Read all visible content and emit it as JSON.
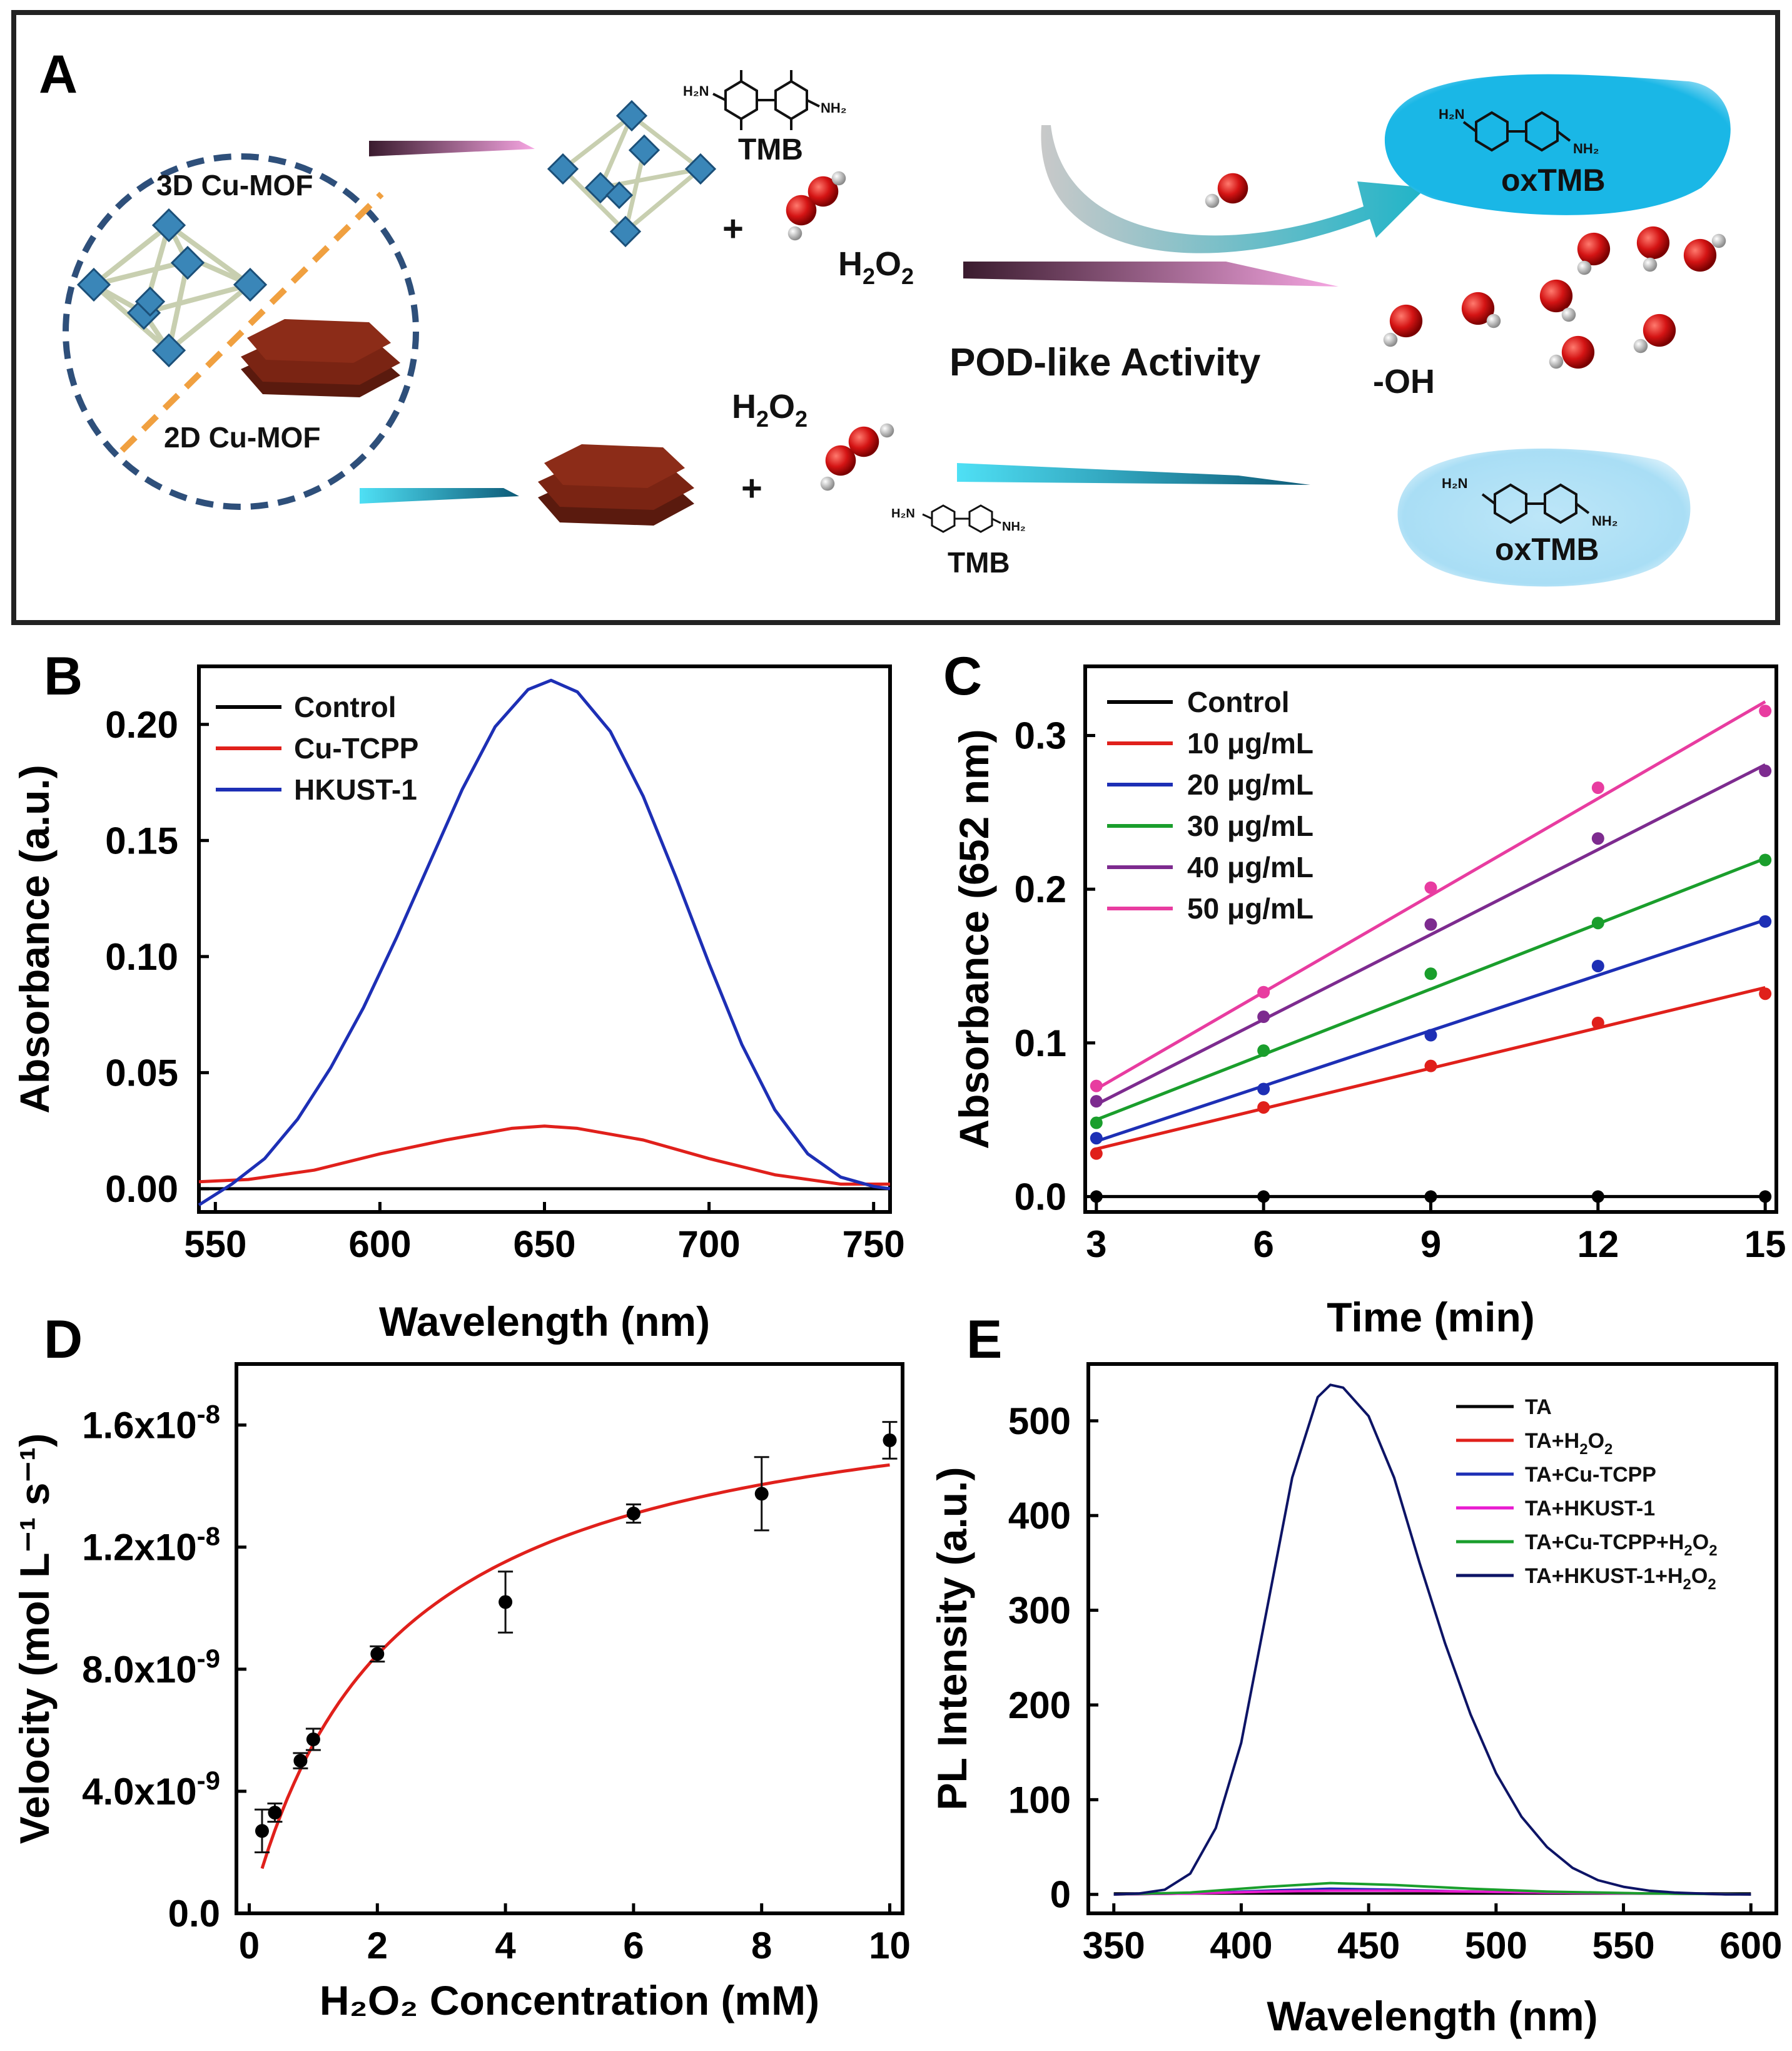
{
  "panel_a": {
    "letter": "A",
    "mof3d_label": "3D Cu-MOF",
    "mof2d_label": "2D Cu-MOF",
    "tmb_label": "TMB",
    "h2o2_label_top_main": "H",
    "h2o2_label_top_sub1": "2",
    "h2o2_label_top_mid": "O",
    "h2o2_label_top_sub2": "2",
    "pod_label": "POD-like Activity",
    "oh_label": "-OH",
    "oxtmb_label": "oxTMB",
    "plus": "+",
    "h2n_label": "H₂N",
    "nh2_label": "NH₂",
    "colors": {
      "cyan": "#1ab7e6",
      "light_cyan": "#a9def5",
      "mof_blue": "#3a86b8",
      "brown": "#7a2413",
      "red_atom": "#d41414",
      "pink_arrow": "#ef8fd0",
      "teal_arrow": "#1aa9c9"
    }
  },
  "chart_data": [
    {
      "panel": "B",
      "type": "line",
      "xlabel": "Wavelength (nm)",
      "ylabel": "Absorbance (a.u.)",
      "xlim": [
        545,
        755
      ],
      "ylim": [
        -0.01,
        0.225
      ],
      "xticks": [
        "550",
        "600",
        "650",
        "700",
        "750"
      ],
      "yticks": [
        "0.00",
        "0.05",
        "0.10",
        "0.15",
        "0.20"
      ],
      "legend": "top-left",
      "series": [
        {
          "name": "Control",
          "color": "#000000",
          "x": [
            545,
            755
          ],
          "y": [
            0.0,
            0.0
          ]
        },
        {
          "name": "Cu-TCPP",
          "color": "#e0201b",
          "x": [
            545,
            560,
            580,
            600,
            620,
            640,
            650,
            660,
            680,
            700,
            720,
            740,
            755
          ],
          "y": [
            0.003,
            0.004,
            0.008,
            0.015,
            0.021,
            0.026,
            0.027,
            0.026,
            0.021,
            0.013,
            0.006,
            0.002,
            0.002
          ]
        },
        {
          "name": "HKUST-1",
          "color": "#1d2fb5",
          "x": [
            545,
            555,
            565,
            575,
            585,
            595,
            605,
            615,
            625,
            635,
            645,
            652,
            660,
            670,
            680,
            690,
            700,
            710,
            720,
            730,
            740,
            750,
            755
          ],
          "y": [
            -0.007,
            0.002,
            0.013,
            0.03,
            0.052,
            0.078,
            0.108,
            0.14,
            0.172,
            0.199,
            0.215,
            0.219,
            0.214,
            0.197,
            0.169,
            0.134,
            0.097,
            0.062,
            0.034,
            0.015,
            0.005,
            0.001,
            0.0
          ]
        }
      ]
    },
    {
      "panel": "C",
      "type": "scatter",
      "xlabel": "Time (min)",
      "ylabel": "Absorbance (652 nm)",
      "xlim": [
        2.8,
        15.2
      ],
      "ylim": [
        -0.01,
        0.345
      ],
      "xticks": [
        "3",
        "6",
        "9",
        "12",
        "15"
      ],
      "yticks": [
        "0.0",
        "0.1",
        "0.2",
        "0.3"
      ],
      "legend": "top-left",
      "x": [
        3,
        6,
        9,
        12,
        15
      ],
      "series": [
        {
          "name": "Control",
          "color": "#000000",
          "values": [
            0.0,
            0.0,
            0.0,
            0.0,
            0.0
          ],
          "fit": [
            0.0,
            0.0
          ]
        },
        {
          "name": "10 μg/mL",
          "color": "#e0201b",
          "values": [
            0.028,
            0.058,
            0.085,
            0.113,
            0.132
          ],
          "fit": [
            0.031,
            0.136
          ]
        },
        {
          "name": "20 μg/mL",
          "color": "#1d2fb5",
          "values": [
            0.038,
            0.07,
            0.105,
            0.15,
            0.179
          ],
          "fit": [
            0.036,
            0.18
          ]
        },
        {
          "name": "30 μg/mL",
          "color": "#1a9e2c",
          "values": [
            0.048,
            0.095,
            0.145,
            0.178,
            0.219
          ],
          "fit": [
            0.05,
            0.22
          ]
        },
        {
          "name": "40 μg/mL",
          "color": "#7d2b8f",
          "values": [
            0.062,
            0.117,
            0.177,
            0.233,
            0.277
          ],
          "fit": [
            0.06,
            0.281
          ]
        },
        {
          "name": "50 μg/mL",
          "color": "#e83ca0",
          "values": [
            0.072,
            0.133,
            0.201,
            0.266,
            0.316
          ],
          "fit": [
            0.07,
            0.322
          ]
        }
      ]
    },
    {
      "panel": "D",
      "type": "scatter",
      "xlabel": "H₂O₂ Concentration (mM)",
      "ylabel": "Velocity (mol L⁻¹ s⁻¹)",
      "xlim": [
        -0.2,
        10.2
      ],
      "ylim": [
        0,
        1.8e-08
      ],
      "xticks": [
        "0",
        "2",
        "4",
        "6",
        "8",
        "10"
      ],
      "yticks": [
        "0.0",
        "4.0x10⁻⁹",
        "8.0x10⁻⁹",
        "1.2x10⁻⁸",
        "1.6x10⁻⁸"
      ],
      "points": [
        {
          "x": 0.2,
          "y": 2.7e-09,
          "err": 7e-10
        },
        {
          "x": 0.4,
          "y": 3.3e-09,
          "err": 3e-10
        },
        {
          "x": 0.8,
          "y": 5e-09,
          "err": 2.5e-10
        },
        {
          "x": 1.0,
          "y": 5.7e-09,
          "err": 3.5e-10
        },
        {
          "x": 2.0,
          "y": 8.5e-09,
          "err": 2.5e-10
        },
        {
          "x": 4.0,
          "y": 1.02e-08,
          "err": 1e-09
        },
        {
          "x": 6.0,
          "y": 1.31e-08,
          "err": 3e-10
        },
        {
          "x": 8.0,
          "y": 1.375e-08,
          "err": 1.2e-09
        },
        {
          "x": 10.0,
          "y": 1.55e-08,
          "err": 6e-10
        }
      ],
      "fit": {
        "vmax": 1.8e-08,
        "km": 2.25,
        "color": "#e0201b"
      }
    },
    {
      "panel": "E",
      "type": "line",
      "xlabel": "Wavelength (nm)",
      "ylabel": "PL Intensity (a.u.)",
      "xlim": [
        340,
        610
      ],
      "ylim": [
        -20,
        560
      ],
      "xticks": [
        "350",
        "400",
        "450",
        "500",
        "550",
        "600"
      ],
      "yticks": [
        "0",
        "100",
        "200",
        "300",
        "400",
        "500"
      ],
      "legend": "top-right",
      "series": [
        {
          "name": "TA",
          "color": "#000000",
          "x": [
            350,
            600
          ],
          "y": [
            1,
            1
          ]
        },
        {
          "name": "TA+H",
          "sub": "2",
          "tail": "O",
          "sub2": "2",
          "color": "#e0201b",
          "x": [
            350,
            380,
            410,
            435,
            460,
            490,
            520,
            560,
            600
          ],
          "y": [
            0,
            1,
            3,
            5,
            4,
            3,
            2,
            1,
            0
          ]
        },
        {
          "name": "TA+Cu-TCPP",
          "color": "#1d2fb5",
          "x": [
            350,
            380,
            410,
            435,
            460,
            490,
            520,
            560,
            600
          ],
          "y": [
            0,
            1,
            4,
            6,
            5,
            3,
            2,
            1,
            0
          ]
        },
        {
          "name": "TA+HKUST-1",
          "color": "#e91bd0",
          "x": [
            350,
            380,
            410,
            435,
            460,
            490,
            520,
            560,
            600
          ],
          "y": [
            0,
            1,
            3,
            4,
            4,
            3,
            2,
            1,
            0
          ]
        },
        {
          "name": "TA+Cu-TCPP+H",
          "sub": "2",
          "tail": "O",
          "sub2": "2",
          "color": "#1a9e2c",
          "x": [
            350,
            380,
            410,
            435,
            460,
            490,
            520,
            560,
            600
          ],
          "y": [
            0,
            2,
            8,
            12,
            10,
            6,
            3,
            1,
            0
          ]
        },
        {
          "name": "TA+HKUST-1+H",
          "sub": "2",
          "tail": "O",
          "sub2": "2",
          "color": "#0d1466",
          "x": [
            350,
            360,
            370,
            380,
            390,
            400,
            410,
            420,
            430,
            435,
            440,
            450,
            460,
            470,
            480,
            490,
            500,
            510,
            520,
            530,
            540,
            550,
            560,
            570,
            580,
            590,
            600
          ],
          "y": [
            0,
            1,
            5,
            22,
            70,
            160,
            300,
            440,
            525,
            538,
            535,
            505,
            440,
            350,
            265,
            190,
            128,
            82,
            50,
            28,
            15,
            8,
            4,
            2,
            1,
            0,
            0
          ]
        }
      ]
    }
  ],
  "panel_letters": {
    "b": "B",
    "c": "C",
    "d": "D",
    "e": "E"
  }
}
